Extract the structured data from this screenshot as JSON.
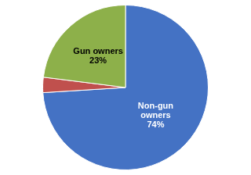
{
  "chart_data": {
    "type": "pie",
    "categories": [
      "Non-gun\nowners",
      null,
      "Gun owners"
    ],
    "values": [
      74,
      3,
      23
    ],
    "value_labels": [
      "74%",
      null,
      "23%"
    ],
    "colors": [
      "#4472C4",
      "#C0504D",
      "#8DB04A"
    ],
    "legend": false
  }
}
